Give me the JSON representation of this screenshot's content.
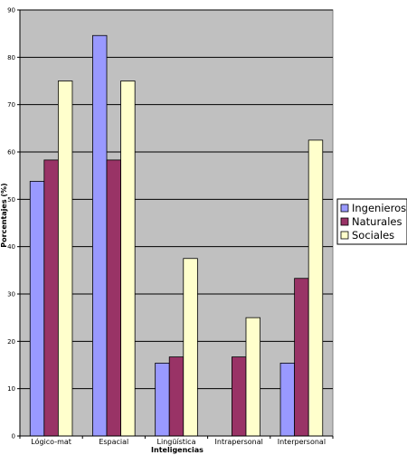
{
  "chart_data": {
    "type": "bar",
    "title": "",
    "xlabel": "Inteligencias",
    "ylabel": "Porcentajes (%)",
    "ylim": [
      0,
      90
    ],
    "yticks": [
      0,
      10,
      20,
      30,
      40,
      50,
      60,
      70,
      80,
      90
    ],
    "grid": true,
    "legend_position": "right",
    "categories": [
      "Lógico-mat",
      "Espacial",
      "Lingüística",
      "Intrapersonal",
      "Interpersonal"
    ],
    "series": [
      {
        "name": "Ingenieros",
        "color": "#9999ff",
        "values": [
          53.8,
          84.6,
          15.4,
          0,
          15.4
        ]
      },
      {
        "name": "Naturales",
        "color": "#993366",
        "values": [
          58.3,
          58.3,
          16.7,
          16.7,
          33.3
        ]
      },
      {
        "name": "Sociales",
        "color": "#ffffcc",
        "values": [
          75,
          75,
          37.5,
          25,
          62.5
        ]
      }
    ],
    "plot_background": "#c0c0c0"
  }
}
